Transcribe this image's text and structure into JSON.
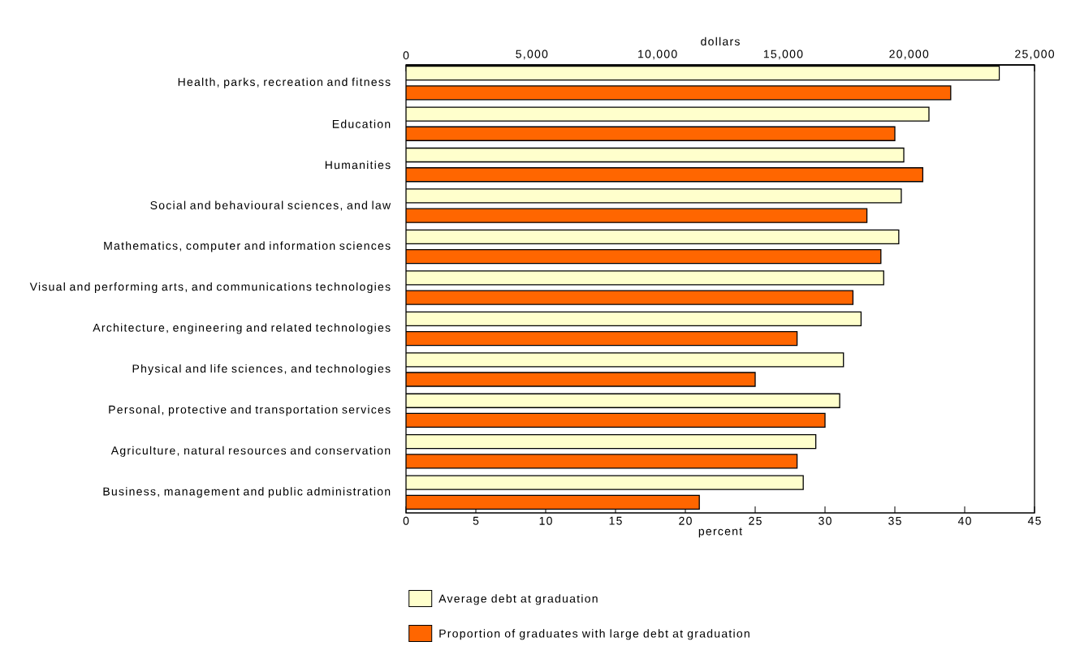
{
  "chart_data": {
    "type": "bar",
    "orientation": "horizontal",
    "categories": [
      "Health, parks, recreation and fitness",
      "Education",
      "Humanities",
      "Social and behavioural sciences, and law",
      "Mathematics, computer and information sciences",
      "Visual and performing arts, and communications technologies",
      "Architecture, engineering and related technologies",
      "Physical and life sciences, and technologies",
      "Personal, protective and transportation services",
      "Agriculture, natural resources and conservation",
      "Business, management and public administration"
    ],
    "series": [
      {
        "name": "Average debt at graduation",
        "color": "#ffffcc",
        "axis": "x2",
        "values": [
          23600,
          20800,
          19800,
          19700,
          19600,
          19000,
          18100,
          17400,
          17250,
          16300,
          15800
        ]
      },
      {
        "name": "Proportion of graduates with large debt at graduation",
        "color": "#ff6600",
        "values": [
          39,
          35,
          37,
          33,
          34,
          32,
          28,
          25,
          30,
          28,
          21
        ]
      }
    ],
    "xlabel": "percent",
    "x2label": "dollars",
    "xlim": [
      0,
      45
    ],
    "xticks": [
      0,
      5,
      10,
      15,
      20,
      25,
      30,
      35,
      40,
      45
    ],
    "x2lim": [
      0,
      25000
    ],
    "x2ticks": [
      0,
      {
        "value": 5000,
        "label": "5,000"
      },
      {
        "value": 10000,
        "label": "10,000"
      },
      {
        "value": 15000,
        "label": "15,000"
      },
      {
        "value": 20000,
        "label": "20,000"
      },
      {
        "value": 25000,
        "label": "25,000"
      }
    ],
    "legend": "bottom",
    "grid": false
  }
}
